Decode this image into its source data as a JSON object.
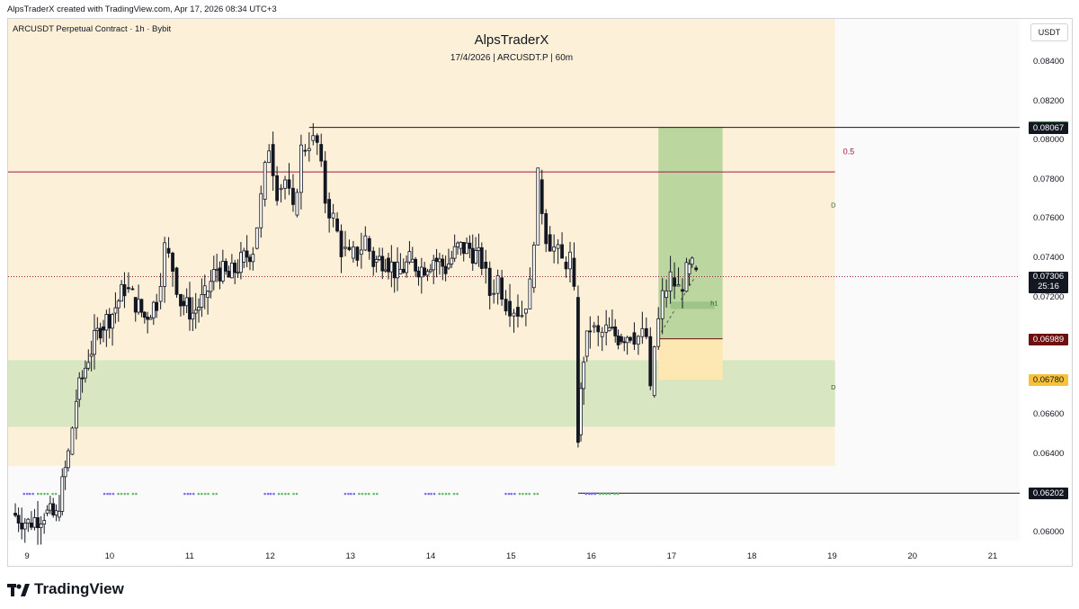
{
  "header": {
    "created_by": "AlpsTraderX created with TradingView.com, Apr 17, 2026 08:34 UTC+3",
    "symbol_line": "ARCUSDT Perpetual Contract · 1h · Bybit",
    "watermark_title": "AlpsTraderX",
    "watermark_sub": "17/4/2026  |  ARCUSDT.P  |  60m",
    "currency": "USDT"
  },
  "footer": {
    "brand": "TradingView"
  },
  "colors": {
    "up": "#131722",
    "down": "#131722",
    "zone_bg": "#fdf0d8",
    "demand_zone": "#d9e6c2",
    "long_target": "#b7d49b",
    "stop_zone": "#fde7b3",
    "fib_line": "#9c1b43",
    "price_line": "#9c1b43"
  },
  "chart_data": {
    "type": "candlestick",
    "title": "AlpsTraderX",
    "subtitle": "17/4/2026 | ARCUSDT.P | 60m",
    "x_ticks": [
      "9",
      "10",
      "11",
      "12",
      "13",
      "14",
      "15",
      "16",
      "17",
      "18",
      "19",
      "20",
      "21"
    ],
    "y_ticks": [
      "0.08400",
      "0.08200",
      "0.08000",
      "0.07800",
      "0.07600",
      "0.07400",
      "0.07200",
      "0.06600",
      "0.06400",
      "0.06000"
    ],
    "y_range": [
      0.0596,
      0.0862
    ],
    "x_range_days": [
      8.75,
      21.35
    ],
    "price_tags": [
      {
        "label": "0.08067",
        "value": 0.0807,
        "color": "#2e7d32"
      },
      {
        "label": "0.08067",
        "value": 0.08067,
        "color": "#131722"
      },
      {
        "label": "0.07306",
        "sublabel": "25:16",
        "value": 0.07306,
        "color": "#131722"
      },
      {
        "label": "0.06989",
        "value": 0.06989,
        "color": "#6b0f0f"
      },
      {
        "label": "0.06780",
        "value": 0.0678,
        "color": "#f7c23a"
      },
      {
        "label": "0.06202",
        "value": 0.06202,
        "color": "#131722"
      }
    ],
    "annotations": [
      {
        "text": "0.5",
        "x": 19.15,
        "y": 0.0793
      },
      {
        "text": "D",
        "x": 19.0,
        "y": 0.0766
      },
      {
        "text": "D",
        "x": 19.0,
        "y": 0.0673
      },
      {
        "text": "h1",
        "x": 17.5,
        "y": 0.0716
      }
    ],
    "levels": {
      "high": 0.08067,
      "fib_05": 0.0784,
      "last": 0.07306,
      "entry": 0.06989,
      "stop": 0.0678,
      "low": 0.06202
    },
    "zones": {
      "premium_zone": {
        "x": [
          8.75,
          19.05
        ],
        "y": [
          0.0634,
          0.0862
        ]
      },
      "demand_zone": {
        "x": [
          8.75,
          19.05
        ],
        "y": [
          0.0654,
          0.0688
        ]
      },
      "long_target": {
        "x": [
          16.85,
          17.65
        ],
        "y": [
          0.06989,
          0.08067
        ]
      },
      "long_stop": {
        "x": [
          16.85,
          17.65
        ],
        "y": [
          0.0678,
          0.06989
        ]
      }
    },
    "series": [
      {
        "name": "ARCUSDT",
        "ohlc_path": [
          [
            8.8,
            0.061
          ],
          [
            9.0,
            0.0605
          ],
          [
            9.2,
            0.061
          ],
          [
            9.35,
            0.0608
          ],
          [
            9.5,
            0.064
          ],
          [
            9.6,
            0.0668
          ],
          [
            9.75,
            0.069
          ],
          [
            9.9,
            0.0705
          ],
          [
            10.05,
            0.0712
          ],
          [
            10.2,
            0.0725
          ],
          [
            10.3,
            0.072
          ],
          [
            10.45,
            0.071
          ],
          [
            10.6,
            0.0718
          ],
          [
            10.7,
            0.0745
          ],
          [
            10.8,
            0.0735
          ],
          [
            10.9,
            0.0718
          ],
          [
            11.05,
            0.0712
          ],
          [
            11.2,
            0.072
          ],
          [
            11.35,
            0.0735
          ],
          [
            11.5,
            0.073
          ],
          [
            11.65,
            0.0738
          ],
          [
            11.8,
            0.0745
          ],
          [
            11.9,
            0.077
          ],
          [
            12.0,
            0.0798
          ],
          [
            12.1,
            0.0775
          ],
          [
            12.2,
            0.078
          ],
          [
            12.3,
            0.0762
          ],
          [
            12.4,
            0.0795
          ],
          [
            12.5,
            0.08
          ],
          [
            12.6,
            0.0798
          ],
          [
            12.7,
            0.077
          ],
          [
            12.8,
            0.076
          ],
          [
            12.9,
            0.0745
          ],
          [
            13.0,
            0.074
          ],
          [
            13.1,
            0.0742
          ],
          [
            13.2,
            0.075
          ],
          [
            13.3,
            0.0738
          ],
          [
            13.45,
            0.074
          ],
          [
            13.6,
            0.0732
          ],
          [
            13.75,
            0.0738
          ],
          [
            13.9,
            0.0735
          ],
          [
            14.05,
            0.074
          ],
          [
            14.2,
            0.0735
          ],
          [
            14.35,
            0.0745
          ],
          [
            14.5,
            0.0745
          ],
          [
            14.65,
            0.0738
          ],
          [
            14.75,
            0.0722
          ],
          [
            14.85,
            0.073
          ],
          [
            14.95,
            0.0718
          ],
          [
            15.05,
            0.0715
          ],
          [
            15.15,
            0.0712
          ],
          [
            15.25,
            0.0725
          ],
          [
            15.35,
            0.078
          ],
          [
            15.45,
            0.0752
          ],
          [
            15.55,
            0.0745
          ],
          [
            15.65,
            0.0738
          ],
          [
            15.75,
            0.074
          ],
          [
            15.8,
            0.072
          ],
          [
            15.85,
            0.065
          ],
          [
            15.92,
            0.069
          ],
          [
            16.0,
            0.0705
          ],
          [
            16.1,
            0.07
          ],
          [
            16.2,
            0.0703
          ],
          [
            16.35,
            0.07
          ],
          [
            16.5,
            0.0702
          ],
          [
            16.6,
            0.07
          ],
          [
            16.7,
            0.07
          ],
          [
            16.75,
            0.067
          ],
          [
            16.8,
            0.0695
          ],
          [
            16.9,
            0.072
          ],
          [
            17.0,
            0.073
          ],
          [
            17.1,
            0.0724
          ],
          [
            17.2,
            0.0732
          ],
          [
            17.27,
            0.0735
          ],
          [
            17.32,
            0.07306
          ]
        ]
      }
    ]
  }
}
